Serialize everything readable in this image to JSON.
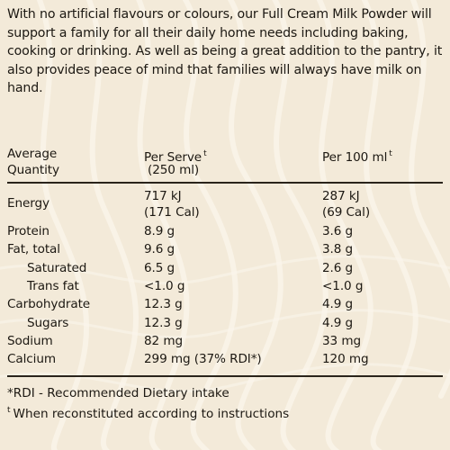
{
  "intro_text": "With no artificial flavours or colours, our Full Cream Milk Powder will support a family for all their daily home needs including baking, cooking or drinking. As well as being a great addition to the pantry, it also provides peace of mind that families will always have milk on hand.",
  "table": {
    "header": {
      "col1_line1": "Average",
      "col1_line2": "Quantity",
      "col2_line1": "Per Serve",
      "col2_line2": "(250 ml)",
      "col3_line1": "Per 100 ml",
      "marker": "t"
    },
    "energy": {
      "label": "Energy",
      "serve_kj": "717 kJ",
      "serve_cal": "(171 Cal)",
      "per100_kj": "287 kJ",
      "per100_cal": "(69 Cal)"
    },
    "rows": [
      {
        "label": "Protein",
        "serve": "8.9 g",
        "per100": "3.6 g"
      },
      {
        "label": "Fat, total",
        "serve": "9.6 g",
        "per100": "3.8 g"
      },
      {
        "label": "Saturated",
        "serve": "6.5 g",
        "per100": "2.6 g"
      },
      {
        "label": "Trans fat",
        "serve": "<1.0 g",
        "per100": "<1.0 g"
      },
      {
        "label": "Carbohydrate",
        "serve": "12.3 g",
        "per100": "4.9 g"
      },
      {
        "label": "Sugars",
        "serve": "12.3 g",
        "per100": "4.9 g"
      },
      {
        "label": "Sodium",
        "serve": "82 mg",
        "per100": "33 mg"
      },
      {
        "label": "Calcium",
        "serve": "299 mg (37% RDI*)",
        "per100": "120 mg"
      }
    ]
  },
  "footnotes": {
    "rdi": "*RDI - Recommended Dietary intake",
    "reconstituted_marker": "t",
    "reconstituted_text": "When reconstituted according to instructions"
  }
}
